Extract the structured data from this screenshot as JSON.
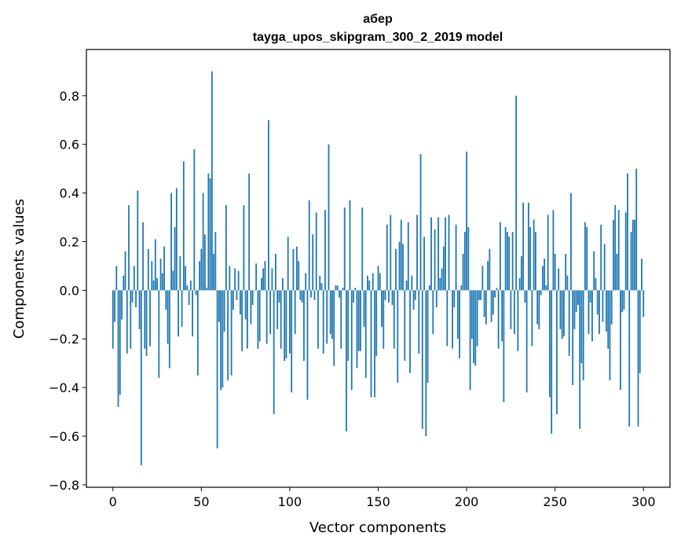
{
  "chart_data": {
    "type": "bar",
    "title": "абер",
    "subtitle": "tayga_upos_skipgram_300_2_2019 model",
    "xlabel": "Vector components",
    "ylabel": "Components values",
    "xlim": [
      -15,
      315
    ],
    "ylim": [
      -0.81,
      0.99
    ],
    "xticks": [
      0,
      50,
      100,
      150,
      200,
      250,
      300
    ],
    "yticks": [
      -0.8,
      -0.6,
      -0.4,
      -0.2,
      0.0,
      0.2,
      0.4,
      0.6,
      0.8
    ],
    "ytick_labels": [
      "−0.8",
      "−0.6",
      "−0.4",
      "−0.2",
      "0.0",
      "0.2",
      "0.4",
      "0.6",
      "0.8"
    ],
    "bar_color": "#1f77b4",
    "values": [
      -0.24,
      -0.13,
      0.1,
      -0.48,
      -0.43,
      -0.12,
      0.06,
      0.16,
      -0.26,
      0.35,
      -0.24,
      -0.05,
      0.1,
      -0.07,
      0.41,
      -0.16,
      -0.72,
      0.28,
      -0.24,
      -0.27,
      0.17,
      -0.23,
      0.12,
      0.04,
      0.21,
      0.05,
      -0.36,
      0.13,
      0.07,
      0.18,
      -0.08,
      -0.22,
      -0.32,
      0.4,
      0.08,
      0.26,
      0.42,
      -0.19,
      0.14,
      -0.15,
      0.53,
      0.1,
      0.02,
      -0.06,
      0.04,
      -0.19,
      0.58,
      -0.02,
      -0.35,
      0.12,
      0.17,
      0.4,
      0.23,
      0.01,
      0.48,
      0.46,
      0.9,
      0.15,
      0.24,
      -0.65,
      -0.13,
      -0.41,
      -0.4,
      -0.17,
      0.35,
      -0.37,
      0.1,
      -0.35,
      -0.08,
      0.09,
      -0.04,
      0.08,
      -0.1,
      -0.25,
      0.35,
      -0.12,
      -0.24,
      0.48,
      -0.14,
      -0.06,
      0.0,
      0.11,
      -0.24,
      -0.21,
      0.05,
      0.09,
      0.12,
      -0.22,
      0.7,
      -0.18,
      0.09,
      -0.51,
      0.15,
      -0.16,
      -0.05,
      -0.24,
      0.05,
      -0.29,
      -0.28,
      0.22,
      -0.26,
      -0.42,
      0.17,
      -0.18,
      0.18,
      0.12,
      -0.04,
      -0.05,
      -0.29,
      0.07,
      -0.45,
      0.37,
      -0.03,
      0.23,
      -0.04,
      0.32,
      -0.24,
      0.06,
      0.03,
      -0.26,
      0.33,
      -0.22,
      0.6,
      -0.18,
      -0.2,
      -0.31,
      0.02,
      0.02,
      -0.03,
      -0.24,
      0.01,
      0.34,
      -0.58,
      -0.29,
      0.37,
      -0.41,
      -0.05,
      0.01,
      -0.32,
      -0.25,
      -0.25,
      0.34,
      -0.15,
      -0.36,
      0.06,
      0.04,
      -0.44,
      0.07,
      -0.44,
      -0.27,
      0.1,
      0.07,
      -0.15,
      -0.24,
      -0.04,
      0.27,
      -0.05,
      0.31,
      -0.06,
      -0.24,
      0.17,
      -0.38,
      0.2,
      0.29,
      0.19,
      -0.29,
      0.04,
      0.28,
      -0.34,
      0.06,
      -0.08,
      -0.04,
      0.31,
      -0.26,
      0.56,
      -0.57,
      0.22,
      -0.6,
      -0.38,
      0.02,
      0.3,
      -0.18,
      0.25,
      -0.07,
      0.3,
      0.05,
      0.09,
      0.18,
      0.3,
      -0.23,
      0.31,
      0.0,
      -0.24,
      -0.07,
      0.27,
      -0.2,
      -0.28,
      0.02,
      0.15,
      0.24,
      0.57,
      0.26,
      -0.41,
      -0.2,
      -0.3,
      -0.31,
      -0.23,
      -0.04,
      -0.04,
      0.1,
      -0.11,
      -0.14,
      0.12,
      0.17,
      -0.13,
      -0.1,
      -0.03,
      0.01,
      -0.24,
      0.28,
      -0.21,
      -0.46,
      0.26,
      0.24,
      0.22,
      -0.16,
      0.24,
      -0.18,
      0.8,
      -0.25,
      0.05,
      0.14,
      0.36,
      -0.05,
      -0.42,
      0.36,
      0.26,
      -0.23,
      0.29,
      0.24,
      -0.14,
      -0.16,
      -0.02,
      0.1,
      0.13,
      0.02,
      0.31,
      -0.44,
      -0.59,
      0.33,
      0.15,
      -0.51,
      0.09,
      -0.16,
      -0.2,
      -0.19,
      0.15,
      0.06,
      -0.27,
      0.4,
      -0.39,
      -0.16,
      -0.09,
      -0.06,
      -0.57,
      -0.3,
      -0.37,
      0.28,
      0.26,
      -0.18,
      -0.05,
      -0.21,
      0.16,
      0.05,
      -0.1,
      -0.18,
      0.27,
      -0.13,
      0.19,
      -0.17,
      -0.24,
      -0.37,
      -0.14,
      0.29,
      0.35,
      0.15,
      0.33,
      -0.41,
      -0.09,
      -0.08,
      0.32,
      0.48,
      -0.56,
      0.24,
      0.29,
      0.29,
      0.5,
      -0.56,
      -0.34,
      0.13,
      -0.11
    ]
  }
}
